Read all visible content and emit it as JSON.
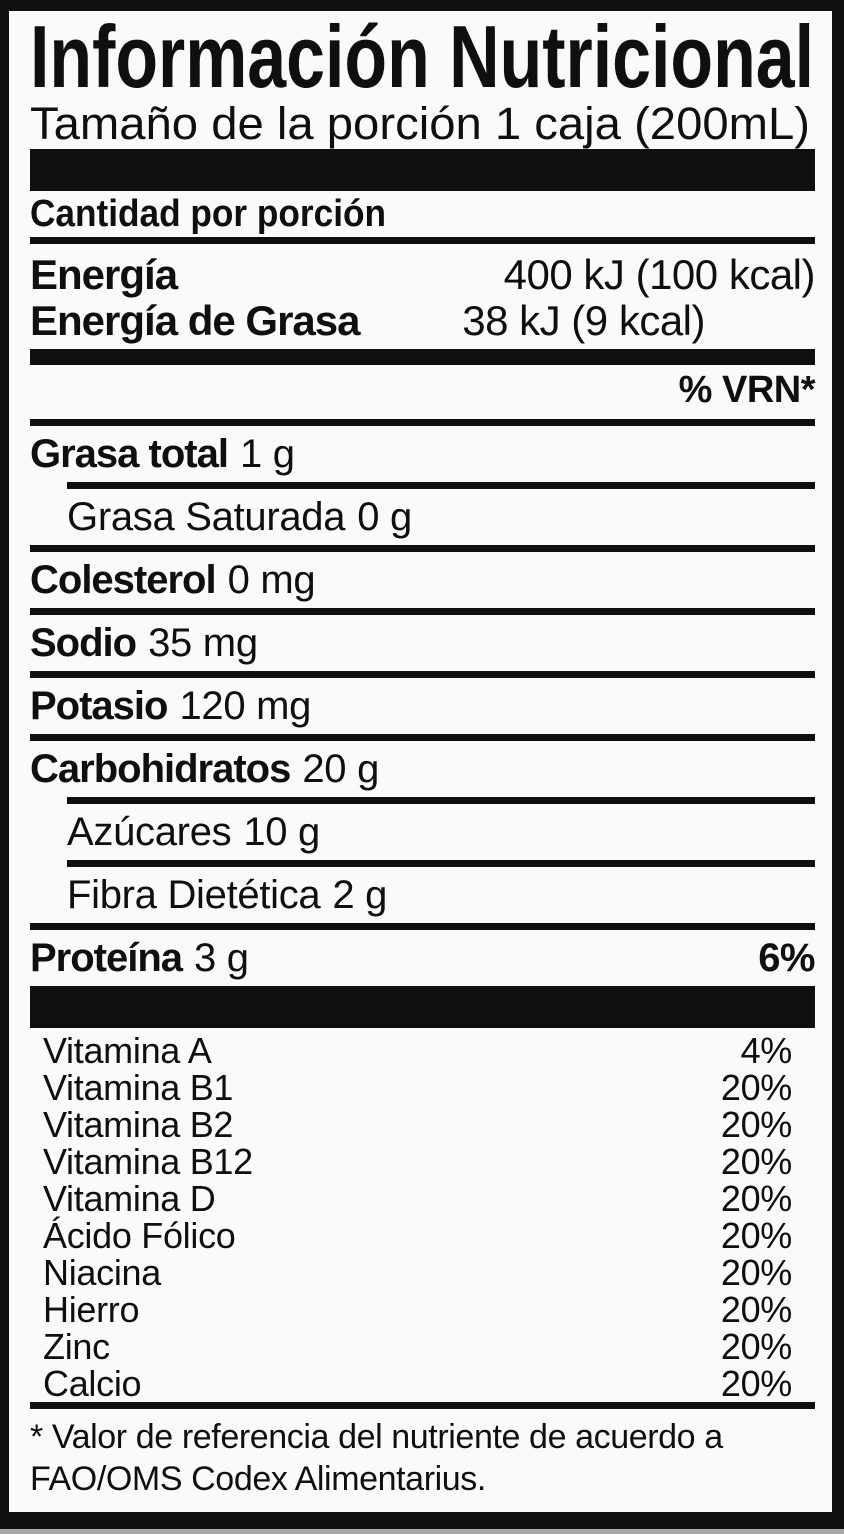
{
  "colors": {
    "ink": "#0f0f0f",
    "paper": "#fafafa"
  },
  "label": {
    "title": "Información Nutricional",
    "serving_line": "Tamaño de la porción 1 caja (200mL)",
    "amount_per_serving": "Cantidad por porción",
    "energy": [
      {
        "name": "Energía",
        "value": "400 kJ (100 kcal)"
      },
      {
        "name": "Energía de Grasa",
        "value": "38 kJ (9 kcal)"
      }
    ],
    "dv_header": "% VRN*",
    "nutrients": [
      {
        "name": "Grasa total",
        "value": "1 g",
        "pct": "",
        "style": "main",
        "rule_below": "rule-indent"
      },
      {
        "name": "Grasa Saturada",
        "value": "0 g",
        "pct": "",
        "style": "sub",
        "rule_below": "rule-full"
      },
      {
        "name": "Colesterol",
        "value": "0 mg",
        "pct": "",
        "style": "main",
        "rule_below": "rule-full"
      },
      {
        "name": "Sodio",
        "value": "35 mg",
        "pct": "",
        "style": "main",
        "rule_below": "rule-full"
      },
      {
        "name": "Potasio",
        "value": "120 mg",
        "pct": "",
        "style": "main",
        "rule_below": "rule-full"
      },
      {
        "name": "Carbohidratos",
        "value": "20 g",
        "pct": "",
        "style": "main",
        "rule_below": "rule-indent"
      },
      {
        "name": "Azúcares",
        "value": "10 g",
        "pct": "",
        "style": "sub",
        "rule_below": "rule-indent"
      },
      {
        "name": "Fibra Dietética",
        "value": "2 g",
        "pct": "",
        "style": "sub",
        "rule_below": "rule-full"
      },
      {
        "name": "Proteína",
        "value": "3 g",
        "pct": "6%",
        "style": "main",
        "rule_below": "rule-none"
      }
    ],
    "micronutrients": [
      {
        "name": "Vitamina A",
        "pct": "4%"
      },
      {
        "name": "Vitamina B1",
        "pct": "20%"
      },
      {
        "name": "Vitamina B2",
        "pct": "20%"
      },
      {
        "name": "Vitamina B12",
        "pct": "20%"
      },
      {
        "name": "Vitamina D",
        "pct": "20%"
      },
      {
        "name": "Ácido Fólico",
        "pct": "20%"
      },
      {
        "name": "Niacina",
        "pct": "20%"
      },
      {
        "name": "Hierro",
        "pct": "20%"
      },
      {
        "name": "Zinc",
        "pct": "20%"
      },
      {
        "name": "Calcio",
        "pct": "20%"
      }
    ],
    "footnote": {
      "line1": "* Valor de referencia del nutriente de acuerdo a",
      "line2": "FAO/OMS Codex Alimentarius."
    }
  }
}
